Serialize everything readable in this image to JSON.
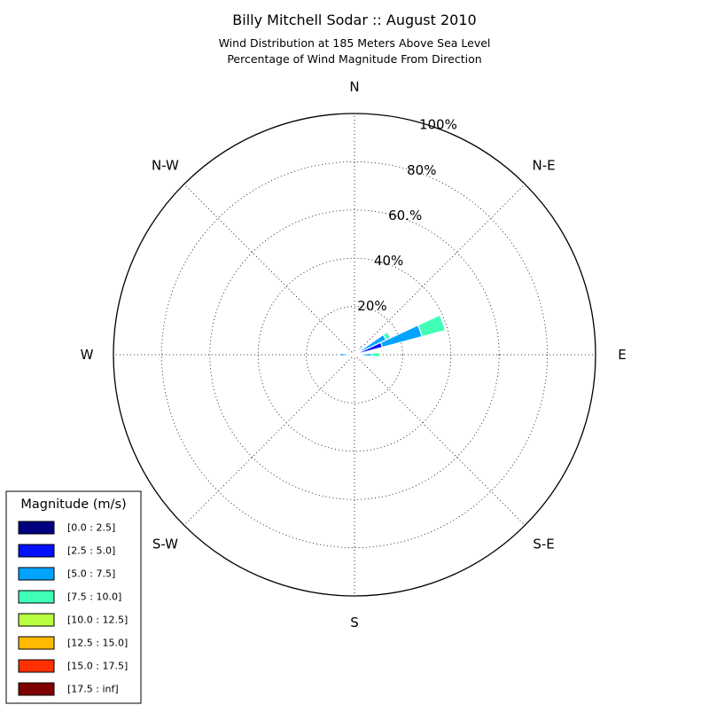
{
  "chart_data": {
    "type": "windrose",
    "title": "Billy Mitchell Sodar :: August 2010",
    "subtitle_line1": "Wind Distribution at 185 Meters Above Sea Level",
    "subtitle_line2": "Percentage of Wind Magnitude From Direction",
    "radial_max_percent": 100,
    "radial_ticks": [
      {
        "value": 20,
        "label": "20%"
      },
      {
        "value": 40,
        "label": "40%"
      },
      {
        "value": 60,
        "label": "60.%"
      },
      {
        "value": 80,
        "label": "80%"
      },
      {
        "value": 100,
        "label": "100%"
      }
    ],
    "direction_labels": [
      {
        "deg": 0,
        "label": "N"
      },
      {
        "deg": 45,
        "label": "N-E"
      },
      {
        "deg": 90,
        "label": "E"
      },
      {
        "deg": 135,
        "label": "S-E"
      },
      {
        "deg": 180,
        "label": "S"
      },
      {
        "deg": 225,
        "label": "S-W"
      },
      {
        "deg": 270,
        "label": "W"
      },
      {
        "deg": 315,
        "label": "N-W"
      }
    ],
    "grid": true,
    "legend": {
      "title": "Magnitude (m/s)",
      "placement": "bottom-left",
      "bins": [
        {
          "label": "[0.0 : 2.5]",
          "color": "#00007f"
        },
        {
          "label": "[2.5 : 5.0]",
          "color": "#0010ff"
        },
        {
          "label": "[5.0 : 7.5]",
          "color": "#00a4ff"
        },
        {
          "label": "[7.5 : 10.0]",
          "color": "#40ffb7"
        },
        {
          "label": "[10.0 : 12.5]",
          "color": "#b7ff40"
        },
        {
          "label": "[12.5 : 15.0]",
          "color": "#ffb900"
        },
        {
          "label": "[15.0 : 17.5]",
          "color": "#ff3000"
        },
        {
          "label": "[17.5 : inf]",
          "color": "#7f0000"
        }
      ]
    },
    "sector_width_deg": 10,
    "sectors": [
      {
        "direction_deg": 60,
        "cumulative_percent": [
          0.5,
          2.5,
          14.5,
          16.5,
          16.5,
          16.5,
          16.5,
          16.5
        ]
      },
      {
        "direction_deg": 70,
        "cumulative_percent": [
          1.0,
          12.0,
          29.0,
          39.0,
          39.0,
          39.0,
          39.0,
          39.0
        ]
      },
      {
        "direction_deg": 40,
        "cumulative_percent": [
          1.0,
          3.5,
          5.0,
          5.0,
          5.0,
          5.0,
          5.0,
          5.0
        ]
      },
      {
        "direction_deg": 90,
        "cumulative_percent": [
          0.5,
          2.0,
          7.0,
          10.5,
          11.0,
          11.0,
          11.0,
          11.0
        ]
      },
      {
        "direction_deg": 270,
        "cumulative_percent": [
          0.3,
          2.0,
          6.0,
          6.0,
          6.0,
          6.0,
          6.0,
          6.0
        ]
      },
      {
        "direction_deg": 100,
        "cumulative_percent": [
          0.3,
          1.0,
          2.5,
          3.5,
          3.5,
          3.5,
          3.5,
          3.5
        ]
      }
    ]
  }
}
